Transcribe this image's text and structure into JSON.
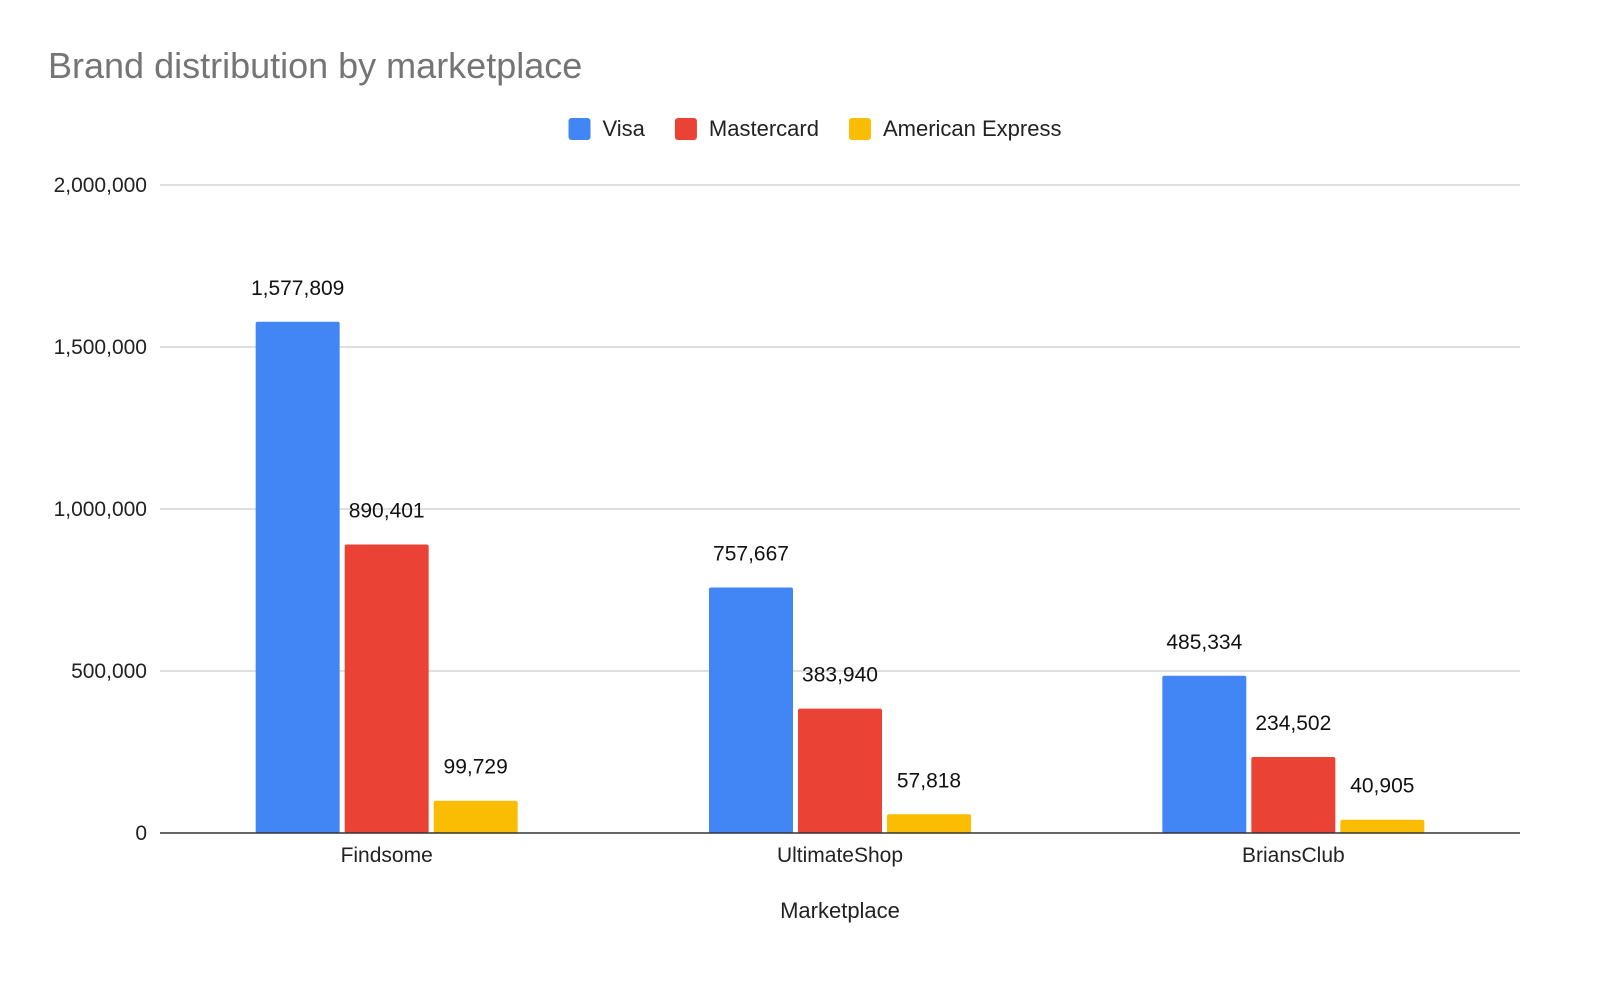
{
  "chart_data": {
    "type": "bar",
    "title": "Brand distribution by marketplace",
    "xlabel": "Marketplace",
    "ylabel": "",
    "categories": [
      "Findsome",
      "UltimateShop",
      "BriansClub"
    ],
    "series": [
      {
        "name": "Visa",
        "color": "#4285f4",
        "values": [
          1577809,
          757667,
          485334
        ],
        "labels": [
          "1,577,809",
          "757,667",
          "485,334"
        ]
      },
      {
        "name": "Mastercard",
        "color": "#ea4335",
        "values": [
          890401,
          383940,
          234502
        ],
        "labels": [
          "890,401",
          "383,940",
          "234,502"
        ]
      },
      {
        "name": "American Express",
        "color": "#fbbc04",
        "values": [
          99729,
          57818,
          40905
        ],
        "labels": [
          "99,729",
          "57,818",
          "40,905"
        ]
      }
    ],
    "ylim": [
      0,
      2000000
    ],
    "yticks": [
      0,
      500000,
      1000000,
      1500000,
      2000000
    ],
    "ytick_labels": [
      "0",
      "500,000",
      "1,000,000",
      "1,500,000",
      "2,000,000"
    ],
    "grid": true,
    "legend_position": "top-center"
  }
}
